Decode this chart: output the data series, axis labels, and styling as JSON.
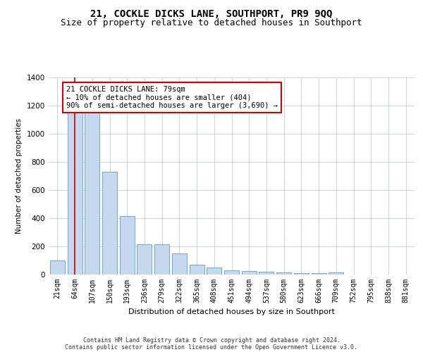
{
  "title": "21, COCKLE DICKS LANE, SOUTHPORT, PR9 9QQ",
  "subtitle": "Size of property relative to detached houses in Southport",
  "xlabel": "Distribution of detached houses by size in Southport",
  "ylabel": "Number of detached properties",
  "categories": [
    "21sqm",
    "64sqm",
    "107sqm",
    "150sqm",
    "193sqm",
    "236sqm",
    "279sqm",
    "322sqm",
    "365sqm",
    "408sqm",
    "451sqm",
    "494sqm",
    "537sqm",
    "580sqm",
    "623sqm",
    "666sqm",
    "709sqm",
    "752sqm",
    "795sqm",
    "838sqm",
    "881sqm"
  ],
  "values": [
    100,
    1155,
    1155,
    730,
    415,
    215,
    215,
    150,
    70,
    50,
    30,
    25,
    20,
    15,
    10,
    10,
    15,
    0,
    0,
    0,
    0
  ],
  "bar_color": "#c5d8ee",
  "bar_edge_color": "#5b9bd5",
  "vline_x": 1,
  "vline_color": "#cc0000",
  "annotation_text": "21 COCKLE DICKS LANE: 79sqm\n← 10% of detached houses are smaller (404)\n90% of semi-detached houses are larger (3,690) →",
  "annotation_box_color": "#cc0000",
  "ylim": [
    0,
    1400
  ],
  "yticks": [
    0,
    200,
    400,
    600,
    800,
    1000,
    1200,
    1400
  ],
  "bg_color": "#ffffff",
  "grid_color": "#c8d4e0",
  "footer_line1": "Contains HM Land Registry data © Crown copyright and database right 2024.",
  "footer_line2": "Contains public sector information licensed under the Open Government Licence v3.0.",
  "title_fontsize": 10,
  "subtitle_fontsize": 9,
  "annotation_fontsize": 7.5,
  "ylabel_fontsize": 7.5,
  "xlabel_fontsize": 8,
  "tick_fontsize": 7,
  "ytick_fontsize": 7.5,
  "footer_fontsize": 6
}
